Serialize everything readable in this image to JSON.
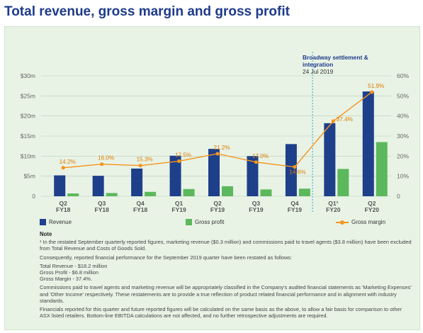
{
  "title": "Total revenue, gross margin and gross profit",
  "annotation": {
    "title": "Broadway settlement & integration",
    "date": "24 Jul 2019"
  },
  "legend": {
    "revenue": "Revenue",
    "gross_profit": "Gross profit",
    "gross_margin": "Gross margin"
  },
  "colors": {
    "revenue": "#1e3f8a",
    "gross_profit": "#5cb85c",
    "gross_margin": "#f7941d",
    "panel": "#e8f3e6",
    "divider": "#2aa7d8"
  },
  "chart_data": {
    "type": "bar",
    "categories": [
      {
        "q": "Q2",
        "fy": "FY18"
      },
      {
        "q": "Q3",
        "fy": "FY18"
      },
      {
        "q": "Q4",
        "fy": "FY18"
      },
      {
        "q": "Q1",
        "fy": "FY19"
      },
      {
        "q": "Q2",
        "fy": "FY19"
      },
      {
        "q": "Q3",
        "fy": "FY19"
      },
      {
        "q": "Q4",
        "fy": "FY19"
      },
      {
        "q": "Q1¹",
        "fy": "FY20"
      },
      {
        "q": "Q2",
        "fy": "FY20"
      }
    ],
    "series": [
      {
        "name": "Revenue",
        "axis": "left",
        "values": [
          5.2,
          5.1,
          6.9,
          10.1,
          11.8,
          10.0,
          13.0,
          18.2,
          26.1
        ]
      },
      {
        "name": "Gross profit",
        "axis": "left",
        "values": [
          0.7,
          0.8,
          1.1,
          1.8,
          2.5,
          1.7,
          1.9,
          6.8,
          13.5
        ]
      },
      {
        "name": "Gross margin",
        "axis": "right",
        "type": "line",
        "values": [
          14.2,
          16.0,
          15.3,
          17.5,
          21.2,
          17.0,
          14.6,
          37.4,
          51.9
        ],
        "labels": [
          "14.2%",
          "16.0%",
          "15.3%",
          "17.5%",
          "21.2%",
          "17.0%",
          "14.6%",
          "37.4%",
          "51.9%"
        ]
      }
    ],
    "y_left": {
      "ticks": [
        "0",
        "$5m",
        "$10m",
        "$15m",
        "$20m",
        "$25m",
        "$30m"
      ],
      "min": 0,
      "max": 30
    },
    "y_right": {
      "ticks": [
        "0",
        "10%",
        "20%",
        "30%",
        "40%",
        "50%",
        "60%"
      ],
      "min": 0,
      "max": 60
    },
    "grid": true,
    "legend_position": "bottom"
  },
  "notes": {
    "heading": "Note",
    "lines": [
      "¹ In the restated September quarterly reported figures, marketing revenue ($0.3 million) and commissions paid to travel agents ($3.8 million) have been excluded from Total Revenue and Costs of Goods Sold.",
      "Consequently, reported financial performance for the September 2019 quarter have been restated as follows:",
      "Total Revenue - $18.2 million",
      "Gross Profit - $6.8 million",
      "Gross Margin - 37.4%.",
      "Commissions paid to travel agents and marketing revenue will be appropriately classified in the Company's audited financial statements as 'Marketing Expenses' and 'Other Income' respectively. These restatements are to provide a true reflection of product related financial performance and in alignment with industry standards.",
      "Financials reported for this quarter and future reported figures will be calculated on the same basis as the above, to allow a fair basis for comparison to other ASX listed retailers. Bottom-line EBITDA calculations are not affected, and no further retrospective adjustments are required."
    ]
  }
}
